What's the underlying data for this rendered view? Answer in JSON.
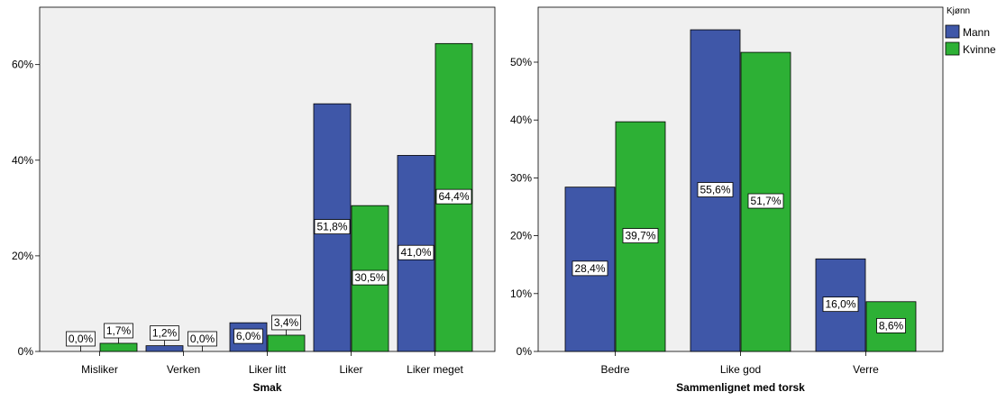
{
  "colors": {
    "mann": "#3F57A8",
    "kvinne": "#2DB035",
    "plot_bg": "#F0F0F0"
  },
  "legend": {
    "title": "Kjønn",
    "items": [
      {
        "label": "Mann",
        "color": "#3F57A8"
      },
      {
        "label": "Kvinne",
        "color": "#2DB035"
      }
    ]
  },
  "chart_data": [
    {
      "type": "bar",
      "xlabel": "Smak",
      "ylabel": "",
      "categories": [
        "Misliker",
        "Verken",
        "Liker litt",
        "Liker",
        "Liker meget"
      ],
      "ylim": [
        0,
        72
      ],
      "yticks": [
        0,
        20,
        40,
        60
      ],
      "ytick_labels": [
        "0%",
        "20%",
        "40%",
        "60%"
      ],
      "grid": false,
      "series": [
        {
          "name": "Mann",
          "values": [
            0.0,
            1.2,
            6.0,
            51.8,
            41.0
          ],
          "labels": [
            "0,0%",
            "1,2%",
            "6,0%",
            "51,8%",
            "41,0%"
          ]
        },
        {
          "name": "Kvinne",
          "values": [
            1.7,
            0.0,
            3.4,
            30.5,
            64.4
          ],
          "labels": [
            "1,7%",
            "0,0%",
            "3,4%",
            "30,5%",
            "64,4%"
          ]
        }
      ]
    },
    {
      "type": "bar",
      "xlabel": "Sammenlignet med torsk",
      "ylabel": "",
      "categories": [
        "Bedre",
        "Like god",
        "Verre"
      ],
      "ylim": [
        0,
        59.5
      ],
      "yticks": [
        0,
        10,
        20,
        30,
        40,
        50
      ],
      "ytick_labels": [
        "0%",
        "10%",
        "20%",
        "30%",
        "40%",
        "50%"
      ],
      "grid": false,
      "series": [
        {
          "name": "Mann",
          "values": [
            28.4,
            55.6,
            16.0
          ],
          "labels": [
            "28,4%",
            "55,6%",
            "16,0%"
          ]
        },
        {
          "name": "Kvinne",
          "values": [
            39.7,
            51.7,
            8.6
          ],
          "labels": [
            "39,7%",
            "51,7%",
            "8,6%"
          ]
        }
      ]
    }
  ]
}
